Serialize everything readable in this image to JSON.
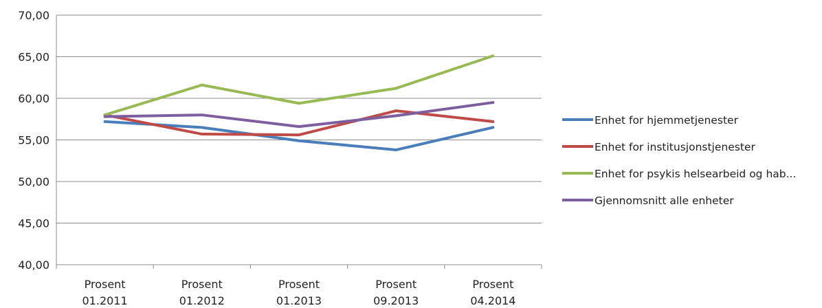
{
  "chart_data": {
    "type": "line",
    "title": "",
    "xlabel": "",
    "ylabel": "",
    "categories": [
      [
        "Prosent",
        "01.2011"
      ],
      [
        "Prosent",
        "01.2012"
      ],
      [
        "Prosent",
        "01.2013"
      ],
      [
        "Prosent",
        "09.2013"
      ],
      [
        "Prosent",
        "04.2014"
      ]
    ],
    "ylim": [
      40,
      70
    ],
    "yticks": [
      "40,00",
      "45,00",
      "50,00",
      "55,00",
      "60,00",
      "65,00",
      "70,00"
    ],
    "grid": true,
    "legend_position": "right",
    "series": [
      {
        "name": "Enhet for hjemmetjenester",
        "color": "#4a7ebb",
        "values": [
          57.2,
          56.5,
          54.9,
          53.8,
          56.5
        ]
      },
      {
        "name": "Enhet for institusjonstjenester",
        "color": "#be4b48",
        "values": [
          58.0,
          55.7,
          55.6,
          58.5,
          57.2
        ]
      },
      {
        "name": "Enhet for psykis helsearbeid og hab...",
        "color": "#98b954",
        "values": [
          58.0,
          61.6,
          59.4,
          61.2,
          65.1
        ]
      },
      {
        "name": "Gjennomsnitt alle enheter",
        "color": "#7d5fa0",
        "values": [
          57.8,
          58.0,
          56.6,
          57.9,
          59.5
        ]
      }
    ]
  }
}
